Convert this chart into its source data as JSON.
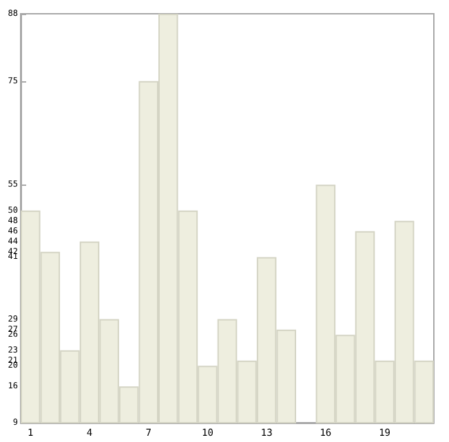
{
  "chart_data": {
    "type": "bar",
    "categories": [
      "1",
      null,
      null,
      "4",
      null,
      null,
      "7",
      null,
      null,
      "10",
      null,
      null,
      "13",
      null,
      null,
      "16",
      null,
      null,
      "19",
      null,
      null
    ],
    "values": [
      50,
      42,
      23,
      44,
      29,
      16,
      75,
      88,
      50,
      20,
      29,
      21,
      41,
      27,
      9,
      55,
      26,
      46,
      21,
      48,
      21
    ],
    "color": "#eeeedf",
    "ylim": [
      9,
      88
    ],
    "yticks": [
      9,
      16,
      20,
      21,
      23,
      26,
      27,
      29,
      41,
      42,
      44,
      46,
      48,
      50,
      55,
      75,
      88
    ],
    "grid": false
  }
}
